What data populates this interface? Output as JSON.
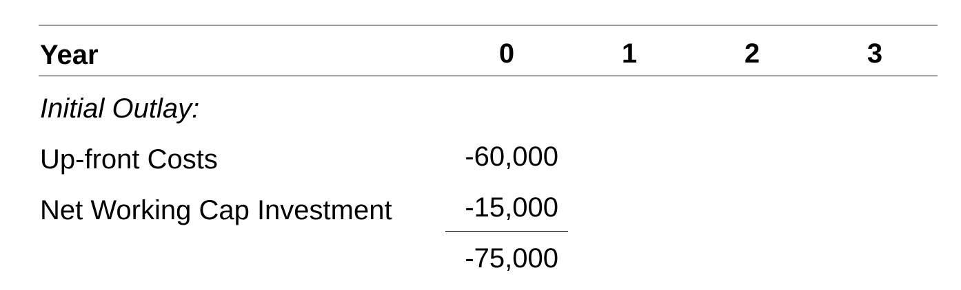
{
  "header": {
    "year_label": "Year",
    "periods": [
      "0",
      "1",
      "2",
      "3"
    ]
  },
  "sections": {
    "initial_outlay_title": "Initial Outlay:"
  },
  "rows": [
    {
      "label": "Up-front Costs",
      "year0": "-60,000"
    },
    {
      "label": "Net Working Cap Investment",
      "year0": "-15,000"
    }
  ],
  "total": {
    "year0": "-75,000"
  }
}
